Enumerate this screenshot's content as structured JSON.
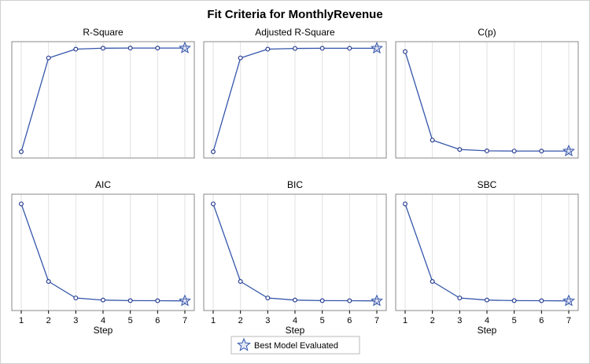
{
  "title": "Fit Criteria for MonthlyRevenue",
  "chart_data": [
    {
      "type": "line",
      "title": "R-Square",
      "x": [
        1,
        2,
        3,
        4,
        5,
        6,
        7
      ],
      "values": [
        0.05,
        0.8,
        0.87,
        0.878,
        0.879,
        0.879,
        0.879
      ],
      "ylim": [
        0,
        0.93
      ],
      "best_step": 7
    },
    {
      "type": "line",
      "title": "Adjusted R-Square",
      "x": [
        1,
        2,
        3,
        4,
        5,
        6,
        7
      ],
      "values": [
        0.05,
        0.8,
        0.87,
        0.876,
        0.877,
        0.877,
        0.877
      ],
      "ylim": [
        0,
        0.93
      ],
      "best_step": 7
    },
    {
      "type": "line",
      "title": "C(p)",
      "x": [
        1,
        2,
        3,
        4,
        5,
        6,
        7
      ],
      "values": [
        100,
        11,
        1.6,
        0.2,
        0.05,
        0.02,
        0.0
      ],
      "ylim": [
        -7,
        110
      ],
      "best_step": 7
    },
    {
      "type": "line",
      "title": "AIC",
      "x": [
        1,
        2,
        3,
        4,
        5,
        6,
        7
      ],
      "values": [
        100,
        20,
        3,
        0.8,
        0.2,
        0.1,
        0.0
      ],
      "ylim": [
        -10,
        110
      ],
      "best_step": 7
    },
    {
      "type": "line",
      "title": "BIC",
      "x": [
        1,
        2,
        3,
        4,
        5,
        6,
        7
      ],
      "values": [
        100,
        20,
        3,
        0.8,
        0.2,
        0.1,
        0.0
      ],
      "ylim": [
        -10,
        110
      ],
      "best_step": 7
    },
    {
      "type": "line",
      "title": "SBC",
      "x": [
        1,
        2,
        3,
        4,
        5,
        6,
        7
      ],
      "values": [
        100,
        20,
        3,
        0.8,
        0.2,
        0.1,
        0.0
      ],
      "ylim": [
        -10,
        110
      ],
      "best_step": 7
    }
  ],
  "xlabel": "Step",
  "xticks": [
    "1",
    "2",
    "3",
    "4",
    "5",
    "6",
    "7"
  ],
  "legend": {
    "label": "Best Model Evaluated",
    "position": "bottom"
  },
  "colors": {
    "line": "#3355aa",
    "marker": "#2a3f8f",
    "star_fill": "#c8d3ee",
    "grid": "#e2e2e2",
    "frame": "#888888"
  }
}
